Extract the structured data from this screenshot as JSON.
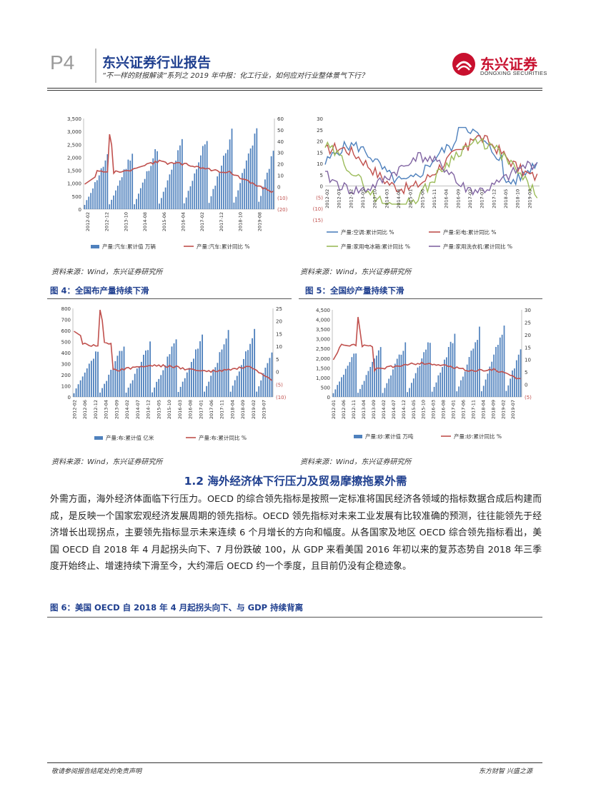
{
  "header": {
    "page_number": "P4",
    "report_title": "东兴证券行业报告",
    "subtitle": "“不一样的财报解读”系列之 2019 年中报：化工行业，如何应对行业整体景气下行？",
    "logo_cn": "东兴证券",
    "logo_en": "DONGXING SECURITIES"
  },
  "charts": {
    "c1": {
      "left_ticks": [
        "3,500",
        "3,000",
        "2,500",
        "2,000",
        "1,500",
        "1,000",
        "500",
        "0"
      ],
      "right_ticks": [
        "60",
        "50",
        "40",
        "30",
        "20",
        "10",
        "0",
        "(10)",
        "(20)"
      ],
      "x_ticks": [
        "2012-02",
        "2012-12",
        "2013-10",
        "2014-08",
        "2015-06",
        "2016-04",
        "2017-02",
        "2017-12",
        "2018-10",
        "2019-08"
      ],
      "legend": [
        "产量:汽车:累计值 万辆",
        "产量:汽车:累计同比 %"
      ]
    },
    "c2": {
      "left_ticks": [
        "30",
        "25",
        "20",
        "15",
        "10",
        "5",
        "0",
        "(5)",
        "(10)",
        "(15)"
      ],
      "x_ticks": [
        "2012-02",
        "2012-07",
        "2012-12",
        "2013-05",
        "2013-10",
        "2014-03",
        "2014-08",
        "2015-01",
        "2015-06",
        "2015-11",
        "2016-04",
        "2016-09",
        "2017-02",
        "2017-07",
        "2017-12",
        "2018-05",
        "2018-10",
        "2019-03"
      ],
      "legend": [
        "产量:空调:累计同比 %",
        "产量:彩电:累计同比 %",
        "产量:家用电冰箱:累计同比 %",
        "产量:家用洗衣机:累计同比 %"
      ]
    },
    "c3": {
      "left_ticks": [
        "800",
        "700",
        "600",
        "500",
        "400",
        "300",
        "200",
        "100",
        "0"
      ],
      "right_ticks": [
        "25",
        "20",
        "15",
        "10",
        "5",
        "0",
        "(5)",
        "(10)"
      ],
      "x_ticks": [
        "2012-02",
        "2012-06",
        "2012-12",
        "2013-04",
        "2013-09",
        "2014-02",
        "2014-07",
        "2014-12",
        "2015-05",
        "2015-10",
        "2016-03",
        "2016-08",
        "2017-01",
        "2017-06",
        "2017-11",
        "2018-04",
        "2018-09",
        "2019-02",
        "2019-07"
      ],
      "legend": [
        "产量:布:累计值 亿米",
        "产量:布:累计同比 %"
      ]
    },
    "c4": {
      "left_ticks": [
        "4,500",
        "4,000",
        "3,500",
        "3,000",
        "2,500",
        "2,000",
        "1,500",
        "1,000",
        "500",
        "0"
      ],
      "right_ticks": [
        "30",
        "25",
        "20",
        "15",
        "10",
        "5",
        "0",
        "(5)"
      ],
      "x_ticks": [
        "2012-01",
        "2012-06",
        "2012-11",
        "2013-04",
        "2013-09",
        "2014-02",
        "2014-07",
        "2014-12",
        "2015-05",
        "2015-10",
        "2016-03",
        "2016-08",
        "2017-01",
        "2017-06",
        "2017-11",
        "2018-04",
        "2018-09",
        "2019-02",
        "2019-07"
      ],
      "legend": [
        "产量:纱:累计值 万吨",
        "产量:纱:累计同比 %"
      ]
    }
  },
  "source_note": "资料来源：Wind，东兴证券研究所",
  "figures": {
    "fig4": "图 4：全国布产量持续下滑",
    "fig5": "图 5：全国纱产量持续下滑",
    "fig6": "图 6：美国 OECD 自 2018 年 4 月起拐头向下、与 GDP 持续背离"
  },
  "section_title": "1.2 海外经济体下行压力及贸易摩擦拖累外需",
  "paragraph": "外需方面，海外经济体面临下行压力。OECD 的综合领先指标是按照一定标准将国民经济各领域的指标数据合成后构建而成，是反映一个国家宏观经济发展周期的领先指标。OECD 领先指标对未来工业发展有比较准确的预测，往往能领先于经济增长出现拐点，主要领先指标显示未来连续 6 个月增长的方向和幅度。从各国家及地区 OECD 综合领先指标看出，美国 OECD 自 2018 年 4 月起拐头向下、7 月份跌破 100，从 GDP 来看美国 2016 年初以来的复苏态势自 2018 年三季度开始终止、增速持续下滑至今，大约滞后 OECD 约一个季度，且目前仍没有企稳迹象。",
  "footer": {
    "left": "敬请参阅报告结尾处的免责声明",
    "right": "东方财智 兴盛之源"
  },
  "colors": {
    "bar": "#4f81bd",
    "line_red": "#c0504d",
    "ac": "#4f81bd",
    "tv": "#c0504d",
    "fridge": "#9bbb59",
    "washer": "#8064a2",
    "brand": "#c8102e",
    "title_blue": "#1f3f8f"
  }
}
